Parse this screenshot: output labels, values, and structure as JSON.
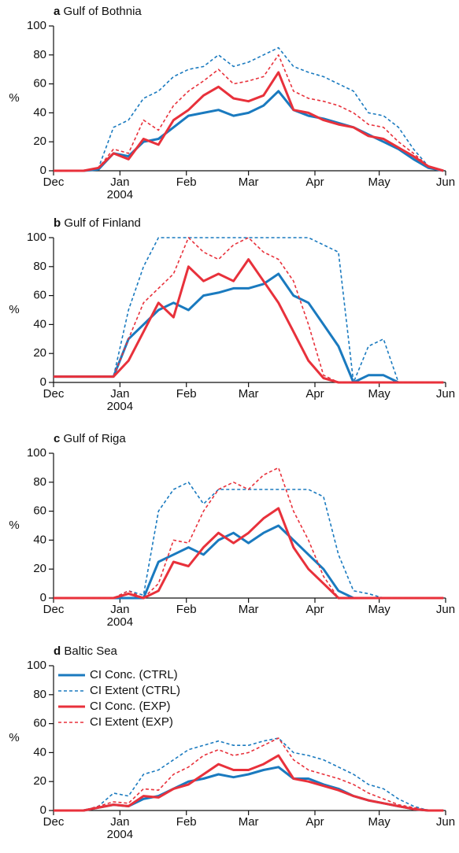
{
  "chart_data": [
    {
      "type": "line",
      "label": "a",
      "title": "Gulf of Bothnia",
      "ylabel": "%",
      "x": [
        0,
        7,
        14,
        21,
        28,
        35,
        42,
        49,
        56,
        63,
        70,
        77,
        84,
        91,
        98,
        105,
        112,
        119,
        126,
        133,
        140,
        147,
        154,
        161,
        168,
        175,
        182
      ],
      "series": [
        {
          "name": "CI Conc. (CTRL)",
          "color": "#1a7abf",
          "dash": false,
          "values": [
            0,
            0,
            0,
            1,
            12,
            10,
            20,
            22,
            30,
            38,
            40,
            42,
            38,
            40,
            45,
            55,
            42,
            38,
            36,
            33,
            30,
            25,
            20,
            15,
            8,
            2,
            0
          ]
        },
        {
          "name": "CI Extent (CTRL)",
          "color": "#1a7abf",
          "dash": true,
          "values": [
            0,
            0,
            0,
            2,
            30,
            35,
            50,
            55,
            65,
            70,
            72,
            80,
            72,
            75,
            80,
            85,
            72,
            68,
            65,
            60,
            55,
            40,
            38,
            30,
            15,
            3,
            0
          ]
        },
        {
          "name": "CI Conc. (EXP)",
          "color": "#e8313b",
          "dash": false,
          "values": [
            0,
            0,
            0,
            2,
            12,
            8,
            22,
            18,
            35,
            42,
            52,
            58,
            50,
            48,
            52,
            68,
            42,
            40,
            35,
            32,
            30,
            24,
            22,
            16,
            10,
            3,
            0
          ]
        },
        {
          "name": "CI Extent (EXP)",
          "color": "#e8313b",
          "dash": true,
          "values": [
            0,
            0,
            0,
            2,
            15,
            12,
            35,
            28,
            45,
            55,
            62,
            70,
            60,
            62,
            65,
            80,
            55,
            50,
            48,
            45,
            40,
            32,
            30,
            20,
            12,
            3,
            0
          ]
        }
      ],
      "xlim": [
        0,
        183
      ],
      "xticks": [
        {
          "value": 0,
          "label": "Dec"
        },
        {
          "value": 31,
          "label": "Jan"
        },
        {
          "value": 62,
          "label": "Feb"
        },
        {
          "value": 91,
          "label": "Mar"
        },
        {
          "value": 122,
          "label": "Apr"
        },
        {
          "value": 152,
          "label": "May"
        },
        {
          "value": 183,
          "label": "Jun"
        }
      ],
      "year_label": "2004",
      "ylim": [
        0,
        100
      ],
      "yticks": [
        0,
        20,
        40,
        60,
        80,
        100
      ]
    },
    {
      "type": "line",
      "label": "b",
      "title": "Gulf of Finland",
      "ylabel": "%",
      "x": [
        0,
        7,
        14,
        21,
        28,
        35,
        42,
        49,
        56,
        63,
        70,
        77,
        84,
        91,
        98,
        105,
        112,
        119,
        126,
        133,
        140,
        147,
        154,
        161,
        168,
        175,
        182
      ],
      "series": [
        {
          "name": "CI Conc. (CTRL)",
          "color": "#1a7abf",
          "dash": false,
          "values": [
            4,
            4,
            4,
            4,
            4,
            30,
            40,
            50,
            55,
            50,
            60,
            62,
            65,
            65,
            68,
            75,
            60,
            55,
            40,
            25,
            0,
            5,
            5,
            0,
            0,
            0,
            0
          ]
        },
        {
          "name": "CI Extent (CTRL)",
          "color": "#1a7abf",
          "dash": true,
          "values": [
            4,
            4,
            4,
            4,
            4,
            50,
            80,
            100,
            100,
            100,
            100,
            100,
            100,
            100,
            100,
            100,
            100,
            100,
            95,
            90,
            0,
            25,
            30,
            0,
            0,
            0,
            0
          ]
        },
        {
          "name": "CI Conc. (EXP)",
          "color": "#e8313b",
          "dash": false,
          "values": [
            4,
            4,
            4,
            4,
            4,
            15,
            35,
            55,
            45,
            80,
            70,
            75,
            70,
            85,
            70,
            55,
            35,
            15,
            3,
            0,
            0,
            0,
            0,
            0,
            0,
            0,
            0
          ]
        },
        {
          "name": "CI Extent (EXP)",
          "color": "#e8313b",
          "dash": true,
          "values": [
            4,
            4,
            4,
            4,
            4,
            30,
            55,
            65,
            75,
            100,
            90,
            85,
            95,
            100,
            90,
            85,
            70,
            40,
            5,
            0,
            0,
            0,
            0,
            0,
            0,
            0,
            0
          ]
        }
      ],
      "xlim": [
        0,
        183
      ],
      "xticks": [
        {
          "value": 0,
          "label": "Dec"
        },
        {
          "value": 31,
          "label": "Jan"
        },
        {
          "value": 62,
          "label": "Feb"
        },
        {
          "value": 91,
          "label": "Mar"
        },
        {
          "value": 122,
          "label": "Apr"
        },
        {
          "value": 152,
          "label": "May"
        },
        {
          "value": 183,
          "label": "Jun"
        }
      ],
      "year_label": "2004",
      "ylim": [
        0,
        100
      ],
      "yticks": [
        0,
        20,
        40,
        60,
        80,
        100
      ]
    },
    {
      "type": "line",
      "label": "c",
      "title": "Gulf of Riga",
      "ylabel": "%",
      "x": [
        0,
        7,
        14,
        21,
        28,
        35,
        42,
        49,
        56,
        63,
        70,
        77,
        84,
        91,
        98,
        105,
        112,
        119,
        126,
        133,
        140,
        147,
        154,
        161,
        168,
        175,
        182
      ],
      "series": [
        {
          "name": "CI Conc. (CTRL)",
          "color": "#1a7abf",
          "dash": false,
          "values": [
            0,
            0,
            0,
            0,
            0,
            0,
            0,
            25,
            30,
            35,
            30,
            40,
            45,
            38,
            45,
            50,
            40,
            30,
            20,
            5,
            0,
            0,
            0,
            0,
            0,
            0,
            0
          ]
        },
        {
          "name": "CI Extent (CTRL)",
          "color": "#1a7abf",
          "dash": true,
          "values": [
            0,
            0,
            0,
            0,
            0,
            5,
            2,
            60,
            75,
            80,
            65,
            75,
            75,
            75,
            75,
            75,
            75,
            75,
            70,
            30,
            5,
            3,
            0,
            0,
            0,
            0,
            0
          ]
        },
        {
          "name": "CI Conc. (EXP)",
          "color": "#e8313b",
          "dash": false,
          "values": [
            0,
            0,
            0,
            0,
            0,
            3,
            0,
            5,
            25,
            22,
            35,
            45,
            38,
            45,
            55,
            62,
            35,
            20,
            10,
            0,
            0,
            0,
            0,
            0,
            0,
            0,
            0
          ]
        },
        {
          "name": "CI Extent (EXP)",
          "color": "#e8313b",
          "dash": true,
          "values": [
            0,
            0,
            0,
            0,
            0,
            5,
            0,
            10,
            40,
            38,
            60,
            75,
            80,
            75,
            85,
            90,
            60,
            40,
            15,
            0,
            0,
            0,
            0,
            0,
            0,
            0,
            0
          ]
        }
      ],
      "xlim": [
        0,
        183
      ],
      "xticks": [
        {
          "value": 0,
          "label": "Dec"
        },
        {
          "value": 31,
          "label": "Jan"
        },
        {
          "value": 62,
          "label": "Feb"
        },
        {
          "value": 91,
          "label": "Mar"
        },
        {
          "value": 122,
          "label": "Apr"
        },
        {
          "value": 152,
          "label": "May"
        },
        {
          "value": 183,
          "label": "Jun"
        }
      ],
      "year_label": "2004",
      "ylim": [
        0,
        100
      ],
      "yticks": [
        0,
        20,
        40,
        60,
        80,
        100
      ]
    },
    {
      "type": "line",
      "label": "d",
      "title": "Baltic Sea",
      "ylabel": "%",
      "legend": "upper left",
      "x": [
        0,
        7,
        14,
        21,
        28,
        35,
        42,
        49,
        56,
        63,
        70,
        77,
        84,
        91,
        98,
        105,
        112,
        119,
        126,
        133,
        140,
        147,
        154,
        161,
        168,
        175,
        182
      ],
      "series": [
        {
          "name": "CI Conc. (CTRL)",
          "color": "#1a7abf",
          "dash": false,
          "values": [
            0,
            0,
            0,
            2,
            4,
            3,
            8,
            10,
            15,
            20,
            22,
            25,
            23,
            25,
            28,
            30,
            22,
            22,
            18,
            15,
            10,
            7,
            5,
            3,
            1,
            0,
            0
          ]
        },
        {
          "name": "CI Extent (CTRL)",
          "color": "#1a7abf",
          "dash": true,
          "values": [
            0,
            0,
            0,
            3,
            12,
            10,
            25,
            28,
            35,
            42,
            45,
            48,
            45,
            45,
            48,
            50,
            40,
            38,
            35,
            30,
            25,
            18,
            15,
            8,
            3,
            0,
            0
          ]
        },
        {
          "name": "CI Conc. (EXP)",
          "color": "#e8313b",
          "dash": false,
          "values": [
            0,
            0,
            0,
            2,
            4,
            3,
            10,
            9,
            15,
            18,
            25,
            32,
            28,
            28,
            32,
            38,
            22,
            20,
            17,
            14,
            10,
            7,
            5,
            3,
            1,
            0,
            0
          ]
        },
        {
          "name": "CI Extent (EXP)",
          "color": "#e8313b",
          "dash": true,
          "values": [
            0,
            0,
            0,
            3,
            6,
            5,
            15,
            14,
            25,
            30,
            38,
            42,
            38,
            40,
            45,
            50,
            35,
            28,
            25,
            22,
            18,
            12,
            8,
            4,
            2,
            0,
            0
          ]
        }
      ],
      "xlim": [
        0,
        183
      ],
      "xticks": [
        {
          "value": 0,
          "label": "Dec"
        },
        {
          "value": 31,
          "label": "Jan"
        },
        {
          "value": 62,
          "label": "Feb"
        },
        {
          "value": 91,
          "label": "Mar"
        },
        {
          "value": 122,
          "label": "Apr"
        },
        {
          "value": 152,
          "label": "May"
        },
        {
          "value": 183,
          "label": "Jun"
        }
      ],
      "year_label": "2004",
      "ylim": [
        0,
        100
      ],
      "yticks": [
        0,
        20,
        40,
        60,
        80,
        100
      ]
    }
  ]
}
